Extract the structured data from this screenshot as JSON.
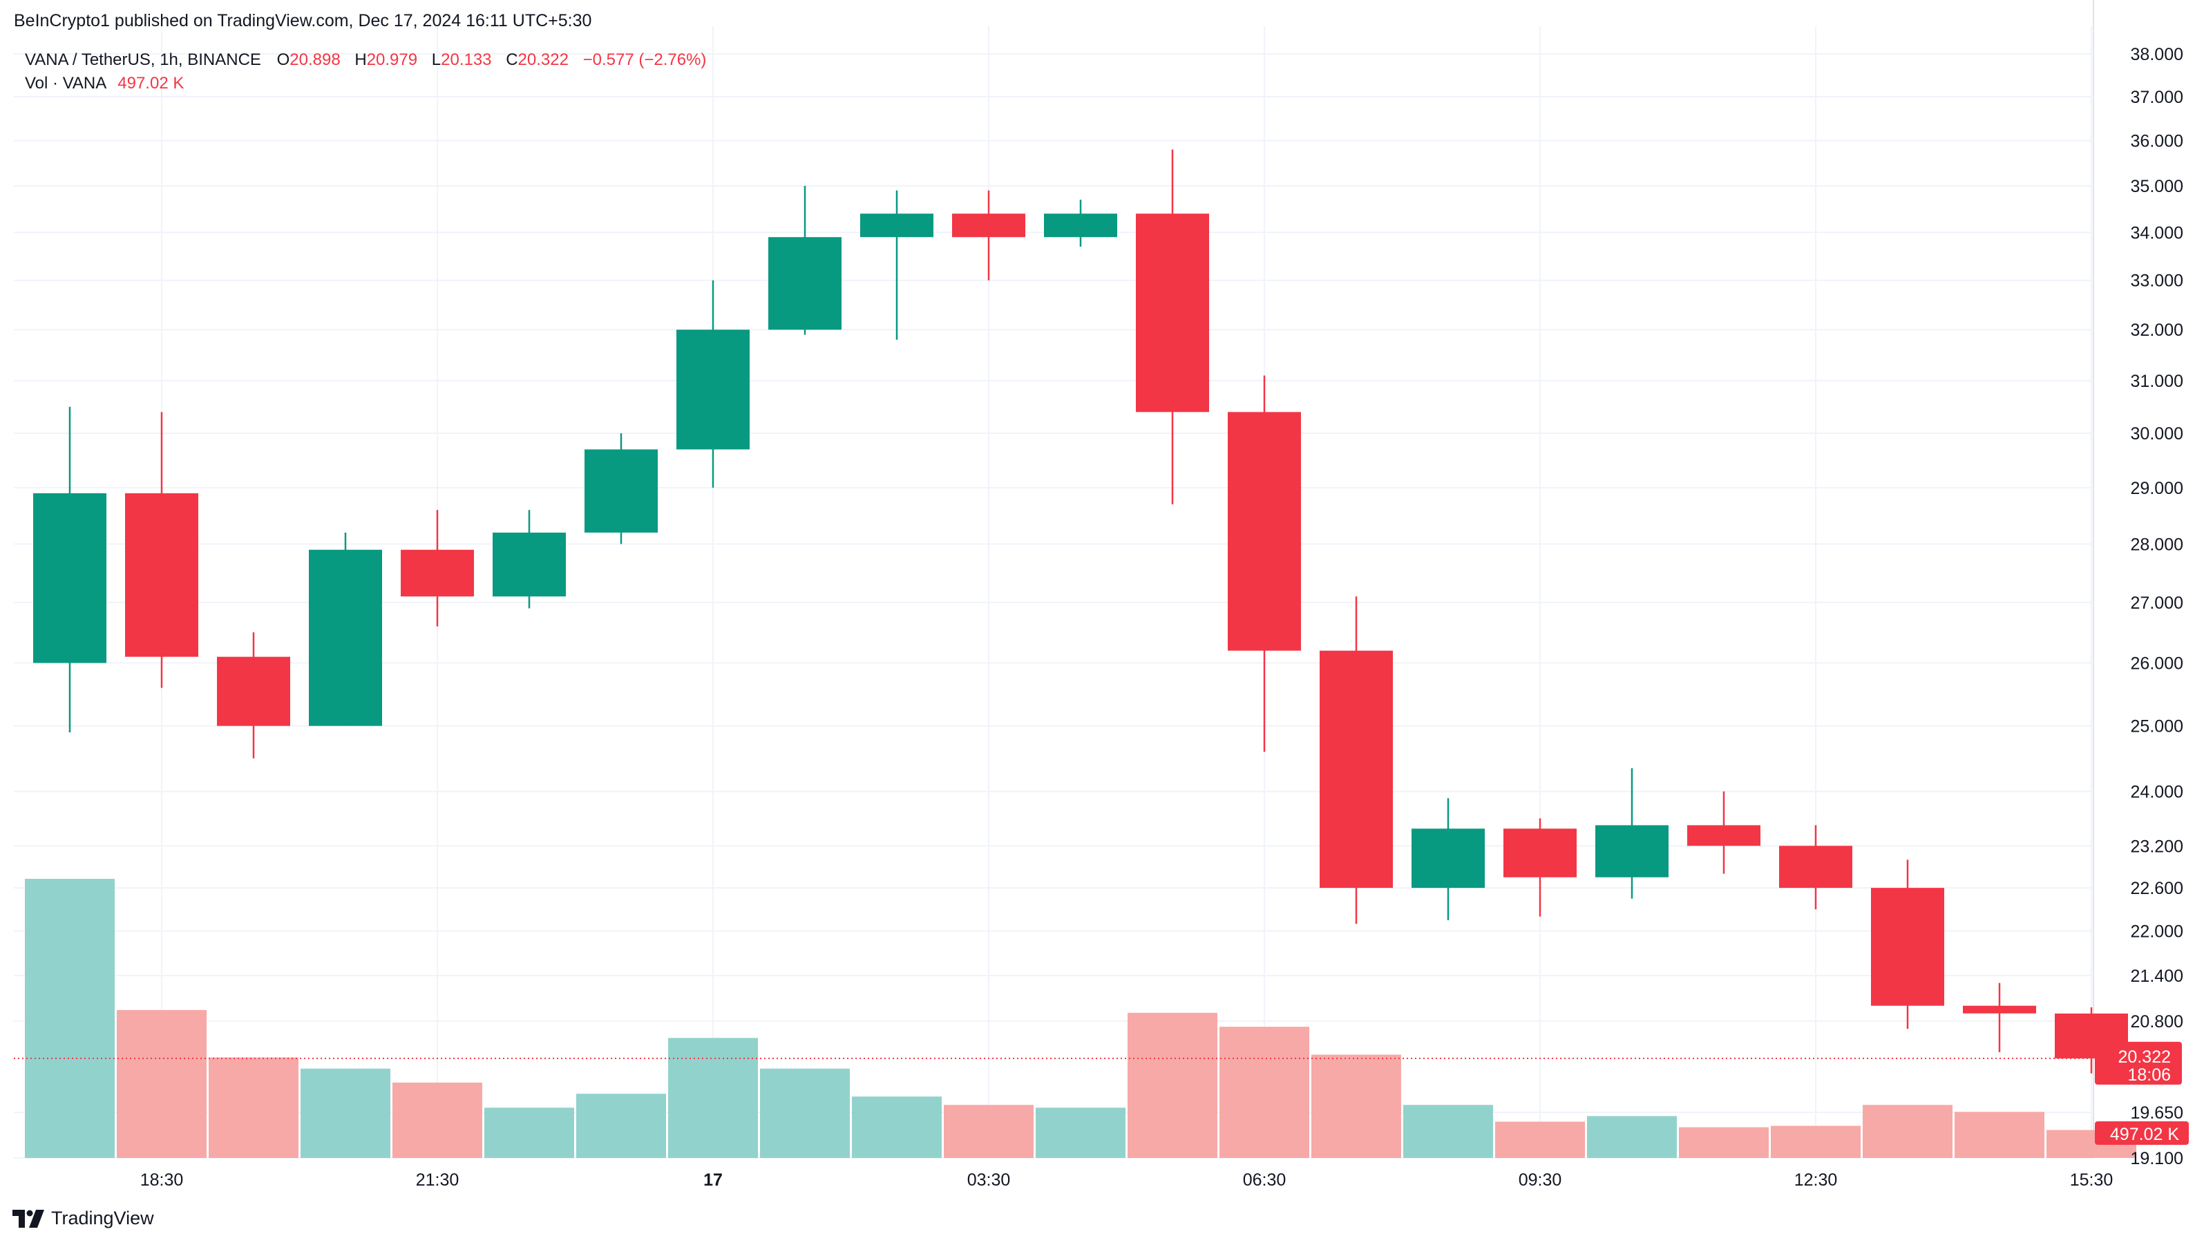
{
  "header": {
    "published": "BeInCrypto1 published on TradingView.com, Dec 17, 2024 16:11 UTC+5:30"
  },
  "legend": {
    "symbol": "VANA / TetherUS, 1h, BINANCE",
    "o_label": "O",
    "o_value": "20.898",
    "h_label": "H",
    "h_value": "20.979",
    "l_label": "L",
    "l_value": "20.133",
    "c_label": "C",
    "c_value": "20.322",
    "change": "−0.577 (−2.76%)",
    "vol_label": "Vol · VANA",
    "vol_value": "497.02 K"
  },
  "brand": {
    "name": "TradingView",
    "icon": "tradingview-logo-icon"
  },
  "colors": {
    "up": "#089981",
    "down": "#f23645",
    "vol_up": "#92d2cc",
    "vol_down": "#f7a9a7",
    "grid": "#f0f3fa",
    "text": "#131722"
  },
  "chart_data": {
    "type": "candlestick",
    "interval": "1h",
    "symbol": "VANA / TetherUS",
    "exchange": "BINANCE",
    "y_scale": "log",
    "ylim": [
      19.1,
      38.0
    ],
    "y_ticks": [
      "38.000",
      "37.000",
      "36.000",
      "35.000",
      "34.000",
      "33.000",
      "32.000",
      "31.000",
      "30.000",
      "29.000",
      "28.000",
      "27.000",
      "26.000",
      "25.000",
      "24.000",
      "23.200",
      "22.600",
      "22.000",
      "21.400",
      "20.800",
      "19.650",
      "19.100"
    ],
    "x_ticks": [
      {
        "label": "18:30",
        "index": 1,
        "bold": false
      },
      {
        "label": "21:30",
        "index": 4,
        "bold": false
      },
      {
        "label": "17",
        "index": 7,
        "bold": true
      },
      {
        "label": "03:30",
        "index": 10,
        "bold": false
      },
      {
        "label": "06:30",
        "index": 13,
        "bold": false
      },
      {
        "label": "09:30",
        "index": 16,
        "bold": false
      },
      {
        "label": "12:30",
        "index": 19,
        "bold": false
      },
      {
        "label": "15:30",
        "index": 22,
        "bold": false
      }
    ],
    "candles": [
      {
        "o": 26.0,
        "h": 30.5,
        "l": 24.9,
        "c": 28.9,
        "v": 1.0
      },
      {
        "o": 28.9,
        "h": 30.4,
        "l": 25.6,
        "c": 26.1,
        "v": 0.53
      },
      {
        "o": 26.1,
        "h": 26.5,
        "l": 24.5,
        "c": 25.0,
        "v": 0.36
      },
      {
        "o": 25.0,
        "h": 28.2,
        "l": 25.0,
        "c": 27.9,
        "v": 0.32
      },
      {
        "o": 27.9,
        "h": 28.6,
        "l": 26.6,
        "c": 27.1,
        "v": 0.27
      },
      {
        "o": 27.1,
        "h": 28.6,
        "l": 26.9,
        "c": 28.2,
        "v": 0.18
      },
      {
        "o": 28.2,
        "h": 30.0,
        "l": 28.0,
        "c": 29.7,
        "v": 0.23
      },
      {
        "o": 29.7,
        "h": 33.0,
        "l": 29.0,
        "c": 32.0,
        "v": 0.43
      },
      {
        "o": 32.0,
        "h": 35.0,
        "l": 31.9,
        "c": 33.9,
        "v": 0.32
      },
      {
        "o": 33.9,
        "h": 34.9,
        "l": 31.8,
        "c": 34.4,
        "v": 0.22
      },
      {
        "o": 34.4,
        "h": 34.9,
        "l": 33.0,
        "c": 33.9,
        "v": 0.19
      },
      {
        "o": 33.9,
        "h": 34.7,
        "l": 33.7,
        "c": 34.4,
        "v": 0.18
      },
      {
        "o": 34.4,
        "h": 35.8,
        "l": 28.7,
        "c": 30.4,
        "v": 0.52
      },
      {
        "o": 30.4,
        "h": 31.1,
        "l": 24.6,
        "c": 26.2,
        "v": 0.47
      },
      {
        "o": 26.2,
        "h": 27.1,
        "l": 22.1,
        "c": 22.6,
        "v": 0.37
      },
      {
        "o": 22.6,
        "h": 23.9,
        "l": 22.15,
        "c": 23.45,
        "v": 0.19
      },
      {
        "o": 23.45,
        "h": 23.6,
        "l": 22.2,
        "c": 22.75,
        "v": 0.13
      },
      {
        "o": 22.75,
        "h": 24.35,
        "l": 22.45,
        "c": 23.5,
        "v": 0.15
      },
      {
        "o": 23.5,
        "h": 24.0,
        "l": 22.8,
        "c": 23.2,
        "v": 0.11
      },
      {
        "o": 23.2,
        "h": 23.5,
        "l": 22.3,
        "c": 22.6,
        "v": 0.115
      },
      {
        "o": 22.6,
        "h": 23.0,
        "l": 20.7,
        "c": 21.0,
        "v": 0.19
      },
      {
        "o": 21.0,
        "h": 21.3,
        "l": 20.4,
        "c": 20.9,
        "v": 0.165
      },
      {
        "o": 20.898,
        "h": 20.979,
        "l": 20.133,
        "c": 20.322,
        "v": 0.1
      }
    ],
    "last_price": {
      "value": "20.322",
      "countdown": "18:06"
    },
    "last_volume": "497.02 K"
  }
}
